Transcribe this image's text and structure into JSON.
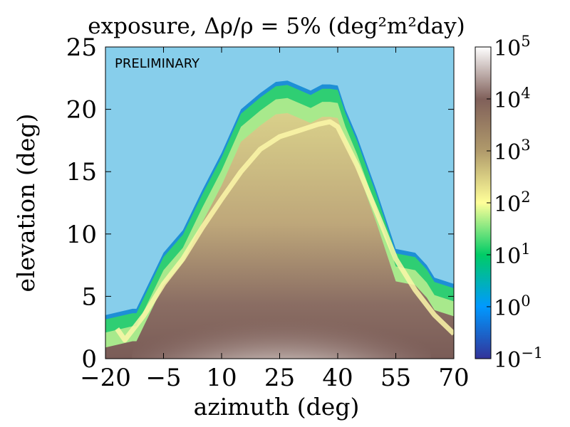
{
  "chart_data": {
    "type": "heatmap",
    "title": "exposure, Δρ/ρ = 5% (deg²m²day)",
    "watermark": "PRELIMINARY",
    "xlabel": "azimuth (deg)",
    "ylabel": "elevation (deg)",
    "xlim": [
      -20,
      70
    ],
    "ylim": [
      0,
      25
    ],
    "x_ticks": [
      -20,
      -5,
      10,
      25,
      40,
      55,
      70
    ],
    "x_tick_labels": [
      "−20",
      "−5",
      "10",
      "25",
      "40",
      "55",
      "70"
    ],
    "y_ticks": [
      0,
      5,
      10,
      15,
      20,
      25
    ],
    "y_tick_labels": [
      "0",
      "5",
      "10",
      "15",
      "20",
      "25"
    ],
    "colorbar": {
      "scale": "log",
      "min": 0.1,
      "max": 100000,
      "tick_values": [
        0.1,
        1,
        10,
        100,
        1000,
        10000,
        100000
      ],
      "tick_bases": [
        "10",
        "10",
        "10",
        "10",
        "10",
        "10",
        "10"
      ],
      "tick_exponents": [
        "−1",
        "0",
        "1",
        "2",
        "3",
        "4",
        "5"
      ],
      "colormap": "terrain",
      "colors": [
        "#333399",
        "#0099ff",
        "#00cc66",
        "#ffff99",
        "#b09a6b",
        "#80605a",
        "#ffffff"
      ]
    },
    "background_color": "#87ceeb",
    "series": [
      {
        "name": "exposure region upper boundary (elevation, deg)",
        "x": [
          -20,
          -13,
          -12,
          -5,
          0,
          5,
          10,
          15,
          20,
          24,
          27,
          30,
          33,
          36,
          38,
          40,
          42,
          45,
          50,
          55,
          60,
          63,
          65,
          70
        ],
        "y": [
          3.5,
          4.0,
          4.0,
          8.5,
          10.3,
          13.5,
          16.5,
          20.0,
          21.3,
          22.2,
          22.3,
          21.9,
          21.5,
          22.0,
          22.0,
          21.9,
          20.0,
          17.8,
          13.5,
          8.8,
          8.5,
          7.5,
          6.5,
          6.0
        ]
      },
      {
        "name": "peak exposure ridge (elevation, deg)",
        "x": [
          -17,
          -15,
          -10,
          -5,
          0,
          5,
          10,
          15,
          20,
          25,
          30,
          35,
          38,
          40,
          45,
          50,
          55,
          60,
          65,
          70
        ],
        "y": [
          2.4,
          1.5,
          3.5,
          6.0,
          8.0,
          10.5,
          12.8,
          15.0,
          16.8,
          17.8,
          18.3,
          18.8,
          19.0,
          18.6,
          15.5,
          11.8,
          8.0,
          5.5,
          3.5,
          2.0
        ]
      }
    ]
  }
}
